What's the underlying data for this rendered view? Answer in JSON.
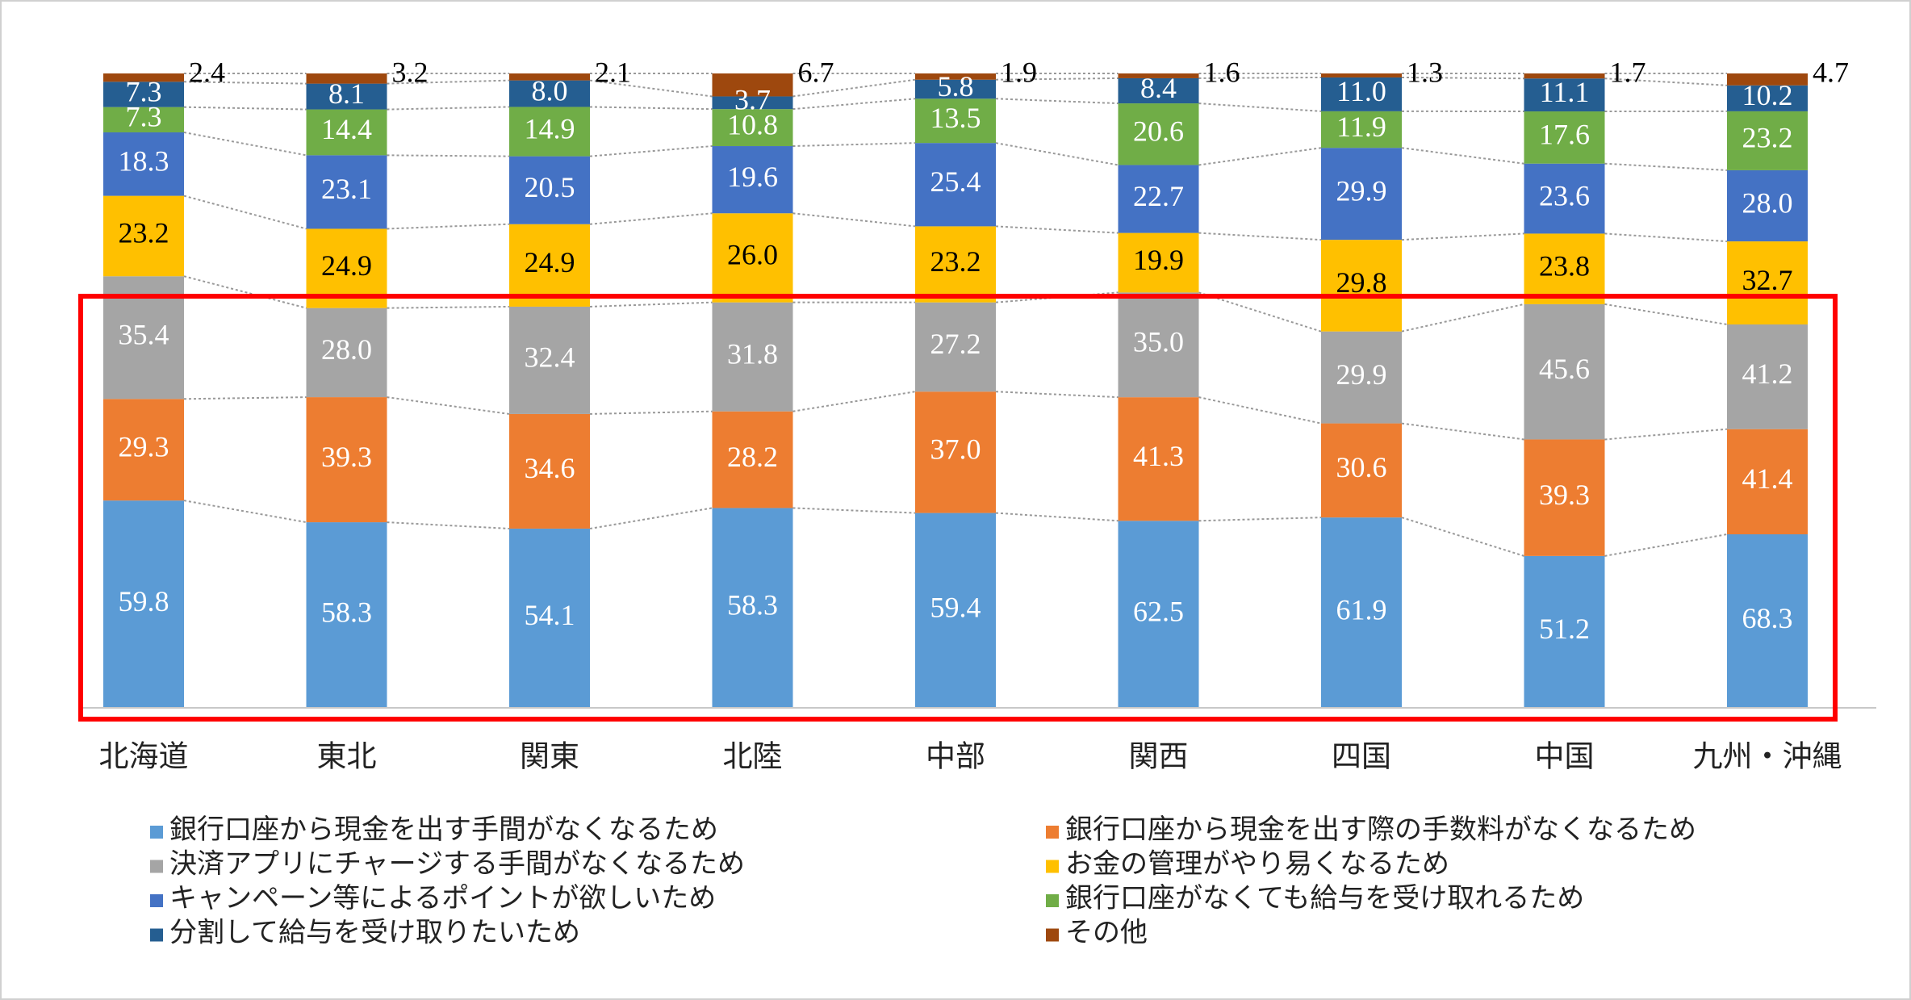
{
  "chart_data": {
    "type": "bar",
    "stacking": "percent",
    "categories": [
      "北海道",
      "東北",
      "関東",
      "北陸",
      "中部",
      "関西",
      "四国",
      "中国",
      "九州・沖縄"
    ],
    "series": [
      {
        "name": "銀行口座から現金を出す手間がなくなるため",
        "color": "#5b9bd5",
        "values": [
          59.8,
          58.3,
          54.1,
          58.3,
          59.4,
          62.5,
          61.9,
          51.2,
          68.3
        ]
      },
      {
        "name": "銀行口座から現金を出す際の手数料がなくなるため",
        "color": "#ed7d31",
        "values": [
          29.3,
          39.3,
          34.6,
          28.2,
          37.0,
          41.3,
          30.6,
          39.3,
          41.4
        ],
        "value_labels": [
          "29.3",
          "39.3",
          "34.6",
          "28.2",
          "37.0",
          "41.3",
          "30.6",
          "39.3",
          "41.4"
        ]
      },
      {
        "name": "決済アプリにチャージする手間がなくなるため",
        "color": "#a5a5a5",
        "values": [
          35.4,
          28.0,
          32.4,
          31.8,
          27.2,
          35.0,
          29.9,
          45.6,
          41.2
        ],
        "value_labels": [
          "35.4",
          "28.0",
          "32.4",
          "31.8",
          "27.2",
          "35.0",
          "29.9",
          "45.6",
          "41.2"
        ]
      },
      {
        "name": "お金の管理がやり易くなるため",
        "color": "#ffc000",
        "values": [
          23.2,
          24.9,
          24.9,
          26.0,
          23.2,
          19.9,
          29.8,
          23.8,
          32.7
        ],
        "value_labels": [
          "23.2",
          "24.9",
          "24.9",
          "26.0",
          "23.2",
          "19.9",
          "29.8",
          "23.8",
          "32.7"
        ]
      },
      {
        "name": "キャンペーン等によるポイントが欲しいため",
        "color": "#4472c4",
        "values": [
          18.3,
          23.1,
          20.5,
          19.6,
          25.4,
          22.7,
          29.9,
          23.6,
          28.0
        ],
        "value_labels": [
          "18.3",
          "23.1",
          "20.5",
          "19.6",
          "25.4",
          "22.7",
          "29.9",
          "23.6",
          "28.0"
        ]
      },
      {
        "name": "銀行口座がなくても給与を受け取れるため",
        "color": "#70ad47",
        "values": [
          7.3,
          14.4,
          14.9,
          10.8,
          13.5,
          20.6,
          11.9,
          17.6,
          23.2
        ]
      },
      {
        "name": "分割して給与を受け取りたいため",
        "color": "#255e91",
        "values": [
          7.3,
          8.1,
          8.0,
          3.7,
          5.8,
          8.4,
          11.0,
          11.1,
          10.2
        ],
        "value_labels": [
          "7.3",
          "8.1",
          "8.0",
          "3.7",
          "5.8",
          "8.4",
          "11.0",
          "11.1",
          "10.2"
        ]
      },
      {
        "name": "その他",
        "color": "#9e480e",
        "values": [
          2.4,
          3.2,
          2.1,
          6.7,
          1.9,
          1.6,
          1.3,
          1.7,
          4.7
        ]
      }
    ]
  }
}
